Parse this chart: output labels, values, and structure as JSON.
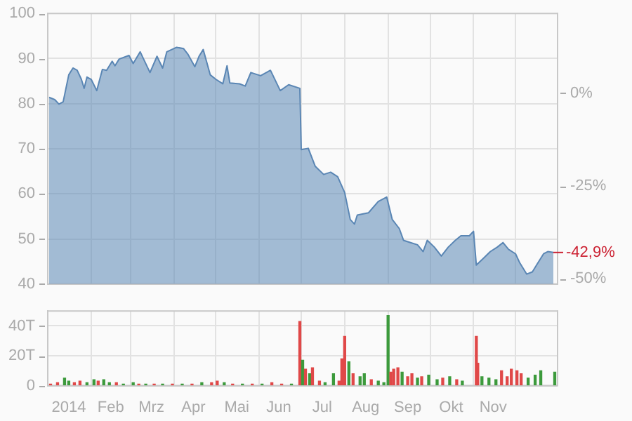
{
  "chart_data": [
    {
      "type": "area",
      "grid": true,
      "tick_labels": "y",
      "xlim": [
        "2014-01-01",
        "2014-12-31"
      ],
      "xticks": [
        {
          "value": "2014-02-01",
          "label": null
        },
        {
          "value": "2014-03-01",
          "label": null
        },
        {
          "value": "2014-04-01",
          "label": null
        },
        {
          "value": "2014-05-01",
          "label": null
        },
        {
          "value": "2014-06-01",
          "label": null
        },
        {
          "value": "2014-07-01",
          "label": null
        },
        {
          "value": "2014-08-01",
          "label": null
        },
        {
          "value": "2014-09-01",
          "label": null
        },
        {
          "value": "2014-10-01",
          "label": null
        },
        {
          "value": "2014-11-01",
          "label": null
        },
        {
          "value": "2014-12-01",
          "label": null
        }
      ],
      "ylim": [
        40,
        100
      ],
      "yticks": [
        40,
        50,
        60,
        70,
        80,
        90,
        100
      ],
      "y2lim": [
        -51.4,
        21.5
      ],
      "y2ticks": [
        {
          "value": 0,
          "label": "0%"
        },
        {
          "value": -25,
          "label": "-25%"
        },
        {
          "value": -50,
          "label": "-50%"
        }
      ],
      "x": [
        "2014-01-02",
        "2014-01-06",
        "2014-01-09",
        "2014-01-12",
        "2014-01-16",
        "2014-01-19",
        "2014-01-22",
        "2014-01-25",
        "2014-01-27",
        "2014-01-29",
        "2014-02-01",
        "2014-02-05",
        "2014-02-09",
        "2014-02-12",
        "2014-02-16",
        "2014-02-18",
        "2014-02-21",
        "2014-02-28",
        "2014-03-03",
        "2014-03-08",
        "2014-03-15",
        "2014-03-20",
        "2014-03-24",
        "2014-03-27",
        "2014-04-03",
        "2014-04-08",
        "2014-04-11",
        "2014-04-16",
        "2014-04-19",
        "2014-04-22",
        "2014-04-27",
        "2014-05-01",
        "2014-05-06",
        "2014-05-09",
        "2014-05-11",
        "2014-05-18",
        "2014-05-22",
        "2014-05-26",
        "2014-06-02",
        "2014-06-09",
        "2014-06-16",
        "2014-06-22",
        "2014-06-30",
        "2014-07-01",
        "2014-07-06",
        "2014-07-11",
        "2014-07-17",
        "2014-07-22",
        "2014-07-27",
        "2014-08-01",
        "2014-08-05",
        "2014-08-08",
        "2014-08-10",
        "2014-08-18",
        "2014-08-25",
        "2014-08-31",
        "2014-09-04",
        "2014-09-09",
        "2014-09-12",
        "2014-09-17",
        "2014-09-22",
        "2014-09-26",
        "2014-09-29",
        "2014-10-04",
        "2014-10-09",
        "2014-10-14",
        "2014-10-19",
        "2014-10-23",
        "2014-10-29",
        "2014-11-01",
        "2014-11-03",
        "2014-11-08",
        "2014-11-13",
        "2014-11-18",
        "2014-11-22",
        "2014-11-26",
        "2014-12-01",
        "2014-12-04",
        "2014-12-09",
        "2014-12-13",
        "2014-12-16",
        "2014-12-21",
        "2014-12-24",
        "2014-12-28"
      ],
      "series": [
        {
          "color": "#5a86b4",
          "values": [
            81.4,
            80.9,
            79.9,
            80.4,
            86.4,
            87.9,
            87.4,
            85.4,
            83.4,
            85.9,
            85.4,
            82.9,
            87.6,
            87.4,
            89.4,
            88.4,
            89.9,
            90.7,
            88.9,
            91.5,
            86.9,
            90.5,
            87.9,
            91.5,
            92.5,
            92.2,
            91.0,
            88.2,
            90.5,
            92.0,
            86.4,
            85.4,
            84.4,
            88.4,
            84.6,
            84.4,
            83.9,
            86.9,
            86.2,
            87.4,
            82.9,
            84.2,
            83.4,
            69.8,
            70.1,
            66.1,
            64.3,
            64.8,
            63.8,
            60.3,
            54.3,
            53.3,
            55.3,
            55.8,
            58.3,
            59.3,
            54.3,
            52.3,
            49.7,
            49.2,
            48.7,
            47.2,
            49.7,
            48.2,
            46.2,
            48.2,
            49.7,
            50.7,
            50.7,
            51.7,
            44.2,
            45.7,
            47.2,
            48.2,
            49.2,
            47.7,
            46.7,
            44.7,
            42.2,
            42.7,
            44.2,
            46.7,
            47.2,
            47.0
          ]
        }
      ],
      "annotations": [
        {
          "text": "-42,9%",
          "x": "2014-12-28",
          "y": 47.0
        }
      ]
    },
    {
      "type": "bar",
      "grid": true,
      "xlim": [
        "2014-01-01",
        "2014-12-31"
      ],
      "xticks": [
        {
          "value": "2014-01-16",
          "label": "2014"
        },
        {
          "value": "2014-02-01",
          "label": null
        },
        {
          "value": "2014-02-15",
          "label": "Feb"
        },
        {
          "value": "2014-03-01",
          "label": null
        },
        {
          "value": "2014-03-16",
          "label": "Mrz"
        },
        {
          "value": "2014-04-01",
          "label": null
        },
        {
          "value": "2014-04-15",
          "label": "Apr"
        },
        {
          "value": "2014-05-01",
          "label": null
        },
        {
          "value": "2014-05-16",
          "label": "Mai"
        },
        {
          "value": "2014-06-01",
          "label": null
        },
        {
          "value": "2014-06-15",
          "label": "Jun"
        },
        {
          "value": "2014-07-01",
          "label": null
        },
        {
          "value": "2014-07-16",
          "label": "Jul"
        },
        {
          "value": "2014-08-01",
          "label": null
        },
        {
          "value": "2014-08-16",
          "label": "Aug"
        },
        {
          "value": "2014-09-01",
          "label": null
        },
        {
          "value": "2014-09-15",
          "label": "Sep"
        },
        {
          "value": "2014-10-01",
          "label": null
        },
        {
          "value": "2014-10-16",
          "label": "Okt"
        },
        {
          "value": "2014-11-01",
          "label": null
        },
        {
          "value": "2014-11-15",
          "label": "Nov"
        },
        {
          "value": "2014-12-01",
          "label": null
        }
      ],
      "ylim": [
        0,
        50
      ],
      "yticks": [
        0,
        {
          "value": 20,
          "label": "20T"
        },
        {
          "value": 40,
          "label": "40T"
        }
      ],
      "x": [
        "2014-01-03",
        "2014-01-08",
        "2014-01-13",
        "2014-01-16",
        "2014-01-20",
        "2014-01-24",
        "2014-01-29",
        "2014-02-03",
        "2014-02-06",
        "2014-02-10",
        "2014-02-14",
        "2014-02-19",
        "2014-02-24",
        "2014-03-03",
        "2014-03-07",
        "2014-03-12",
        "2014-03-18",
        "2014-03-24",
        "2014-03-31",
        "2014-04-07",
        "2014-04-14",
        "2014-04-21",
        "2014-04-28",
        "2014-05-02",
        "2014-05-07",
        "2014-05-13",
        "2014-05-20",
        "2014-05-27",
        "2014-06-03",
        "2014-06-10",
        "2014-06-17",
        "2014-06-24",
        "2014-06-30",
        "2014-07-02",
        "2014-07-04",
        "2014-07-07",
        "2014-07-09",
        "2014-07-14",
        "2014-07-18",
        "2014-07-24",
        "2014-07-28",
        "2014-07-30",
        "2014-08-01",
        "2014-08-04",
        "2014-08-07",
        "2014-08-12",
        "2014-08-15",
        "2014-08-20",
        "2014-08-25",
        "2014-08-29",
        "2014-09-01",
        "2014-09-03",
        "2014-09-05",
        "2014-09-08",
        "2014-09-11",
        "2014-09-15",
        "2014-09-18",
        "2014-09-22",
        "2014-09-25",
        "2014-09-30",
        "2014-10-06",
        "2014-10-10",
        "2014-10-15",
        "2014-10-20",
        "2014-10-24",
        "2014-11-03",
        "2014-11-04",
        "2014-11-07",
        "2014-11-12",
        "2014-11-17",
        "2014-11-21",
        "2014-11-25",
        "2014-11-28",
        "2014-12-02",
        "2014-12-05",
        "2014-12-10",
        "2014-12-15",
        "2014-12-19",
        "2014-12-29"
      ],
      "values": [
        1,
        2,
        5,
        3,
        2,
        3,
        2,
        4,
        3,
        4,
        2,
        2,
        1,
        2,
        1,
        1,
        1,
        1,
        1,
        1,
        1,
        2,
        2,
        3,
        2,
        1,
        1,
        1,
        1,
        2,
        1,
        1,
        43,
        17,
        11,
        8,
        12,
        3,
        2,
        8,
        3,
        18,
        33,
        16,
        8,
        6,
        8,
        4,
        3,
        2,
        47,
        9,
        11,
        12,
        9,
        6,
        8,
        5,
        6,
        7,
        4,
        5,
        6,
        4,
        3,
        33,
        15,
        6,
        5,
        4,
        10,
        6,
        11,
        10,
        8,
        5,
        7,
        10,
        9
      ],
      "colors": [
        "#e04848",
        "#e04848",
        "#3c9a3c",
        "#3c9a3c",
        "#e04848",
        "#e04848",
        "#3c9a3c",
        "#3c9a3c",
        "#e04848",
        "#3c9a3c",
        "#3c9a3c",
        "#e04848",
        "#3c9a3c",
        "#3c9a3c",
        "#e04848",
        "#3c9a3c",
        "#e04848",
        "#3c9a3c",
        "#e04848",
        "#3c9a3c",
        "#e04848",
        "#3c9a3c",
        "#e04848",
        "#e04848",
        "#3c9a3c",
        "#e04848",
        "#3c9a3c",
        "#e04848",
        "#3c9a3c",
        "#e04848",
        "#e04848",
        "#3c9a3c",
        "#e04848",
        "#3c9a3c",
        "#e04848",
        "#3c9a3c",
        "#e04848",
        "#e04848",
        "#3c9a3c",
        "#3c9a3c",
        "#e04848",
        "#e04848",
        "#e04848",
        "#3c9a3c",
        "#e04848",
        "#3c9a3c",
        "#3c9a3c",
        "#e04848",
        "#3c9a3c",
        "#3c9a3c",
        "#3c9a3c",
        "#e04848",
        "#e04848",
        "#e04848",
        "#3c9a3c",
        "#e04848",
        "#e04848",
        "#3c9a3c",
        "#e04848",
        "#3c9a3c",
        "#3c9a3c",
        "#e04848",
        "#3c9a3c",
        "#e04848",
        "#3c9a3c",
        "#e04848",
        "#e04848",
        "#3c9a3c",
        "#3c9a3c",
        "#3c9a3c",
        "#e04848",
        "#e04848",
        "#e04848",
        "#e04848",
        "#e04848",
        "#3c9a3c",
        "#3c9a3c",
        "#3c9a3c",
        "#3c9a3c"
      ]
    }
  ]
}
